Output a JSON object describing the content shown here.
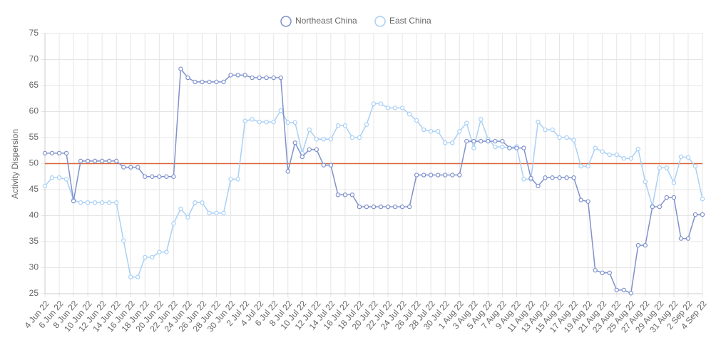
{
  "chart_data": {
    "type": "line",
    "y_label": "Activity Dispersion",
    "categories": [
      "4 Jun 22",
      null,
      "6 Jun 22",
      null,
      "8 Jun 22",
      null,
      "10 Jun 22",
      null,
      "12 Jun 22",
      null,
      "14 Jun 22",
      null,
      "16 Jun 22",
      null,
      "18 Jun 22",
      null,
      "20 Jun 22",
      null,
      "22 Jun 22",
      null,
      "24 Jun 22",
      null,
      "26 Jun 22",
      null,
      "28 Jun 22",
      null,
      "30 Jun 22",
      null,
      "2 Jul 22",
      null,
      "4 Jul 22",
      null,
      "6 Jul 22",
      null,
      "8 Jul 22",
      null,
      "10 Jul 22",
      null,
      "12 Jul 22",
      null,
      "14 Jul 22",
      null,
      "16 Jul 22",
      null,
      "18 Jul 22",
      null,
      "20 Jul 22",
      null,
      "22 Jul 22",
      null,
      "24 Jul 22",
      null,
      "26 Jul 22",
      null,
      "28 Jul 22",
      null,
      "30 Jul 22",
      null,
      "1 Aug 22",
      null,
      "3 Aug 22",
      null,
      "5 Aug 22",
      null,
      "7 Aug 22",
      null,
      "9 Aug 22",
      null,
      "11 Aug 22",
      null,
      "13 Aug 22",
      null,
      "15 Aug 22",
      null,
      "17 Aug 22",
      null,
      "19 Aug 22",
      null,
      "21 Aug 22",
      null,
      "23 Aug 22",
      null,
      "25 Aug 22",
      null,
      "27 Aug 22",
      null,
      "29 Aug 22",
      null,
      "31 Aug 22",
      null,
      "2 Sep 22",
      null,
      "4 Sep 22"
    ],
    "series": [
      {
        "name": "Northeast China",
        "color": "#7f92cc",
        "values": [
          52,
          52,
          52,
          52,
          42.8,
          50.5,
          50.5,
          50.5,
          50.5,
          50.5,
          50.5,
          49.3,
          49.3,
          49.3,
          47.5,
          47.5,
          47.5,
          47.5,
          47.5,
          68.2,
          66.5,
          65.7,
          65.7,
          65.7,
          65.7,
          65.7,
          67,
          67,
          67,
          66.5,
          66.5,
          66.5,
          66.5,
          66.5,
          48.5,
          54,
          51.3,
          52.7,
          52.7,
          49.7,
          49.7,
          44,
          44,
          44,
          41.7,
          41.7,
          41.7,
          41.7,
          41.7,
          41.7,
          41.7,
          41.7,
          47.8,
          47.8,
          47.8,
          47.8,
          47.8,
          47.8,
          47.8,
          54.3,
          54.3,
          54.3,
          54.3,
          54.3,
          54.3,
          53,
          53,
          53,
          47.2,
          45.7,
          47.3,
          47.3,
          47.3,
          47.3,
          47.3,
          43,
          42.7,
          29.5,
          29,
          29,
          25.7,
          25.7,
          25.1,
          34.3,
          34.3,
          41.7,
          41.7,
          43.5,
          43.5,
          35.6,
          35.6,
          40.2,
          40.2
        ]
      },
      {
        "name": "East China",
        "color": "#a9d0f5",
        "values": [
          45.7,
          47.3,
          47.3,
          47,
          43,
          42.5,
          42.5,
          42.5,
          42.5,
          42.5,
          42.5,
          35.2,
          28.2,
          28.2,
          32,
          32,
          33,
          33,
          38.5,
          41.3,
          39.7,
          42.5,
          42.5,
          40.5,
          40.5,
          40.5,
          47,
          47,
          58.2,
          58.5,
          58,
          58,
          58,
          60.2,
          57.9,
          57.9,
          52,
          56.5,
          54.7,
          54.7,
          54.7,
          57.3,
          57.3,
          55,
          55,
          57.5,
          61.5,
          61.5,
          60.7,
          60.7,
          60.7,
          59.5,
          58.3,
          56.5,
          56.2,
          56.2,
          54,
          54,
          56.2,
          57.8,
          53,
          58.5,
          54.7,
          53.2,
          53.2,
          53,
          53.3,
          47,
          47,
          58,
          56.5,
          56.5,
          55,
          55,
          54.5,
          49.5,
          49.5,
          53,
          52.3,
          51.7,
          51.7,
          51,
          51,
          52.8,
          46.5,
          41.8,
          49.2,
          49.2,
          46.3,
          51.3,
          51.2,
          49.5,
          43.2
        ]
      }
    ],
    "reference_line": {
      "value": 50,
      "color": "#d9653b"
    },
    "ylim": [
      25,
      75
    ],
    "yticks": [
      25,
      30,
      35,
      40,
      45,
      50,
      55,
      60,
      65,
      70,
      75
    ],
    "grid": true
  }
}
